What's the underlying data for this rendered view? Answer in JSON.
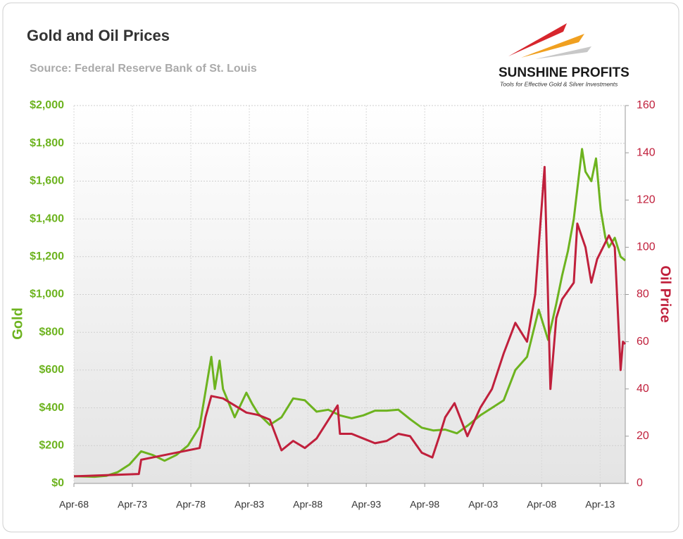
{
  "chart_data": {
    "type": "line",
    "title": "Gold and Oil Prices",
    "subtitle": "Source: Federal Reserve Bank of St. Louis",
    "logo": "SUNSHINE PROFITS",
    "logo_tagline": "Tools for Effective Gold & Silver Investments",
    "ylabel": "Gold",
    "y2label": "Oil Price",
    "xlim": [
      1968.25,
      2015.4
    ],
    "xticks": [
      {
        "value": 1968.25,
        "label": "Apr-68"
      },
      {
        "value": 1973.25,
        "label": "Apr-73"
      },
      {
        "value": 1978.25,
        "label": "Apr-78"
      },
      {
        "value": 1983.25,
        "label": "Apr-83"
      },
      {
        "value": 1988.25,
        "label": "Apr-88"
      },
      {
        "value": 1993.25,
        "label": "Apr-93"
      },
      {
        "value": 1998.25,
        "label": "Apr-98"
      },
      {
        "value": 2003.25,
        "label": "Apr-03"
      },
      {
        "value": 2008.25,
        "label": "Apr-08"
      },
      {
        "value": 2013.25,
        "label": "Apr-13"
      }
    ],
    "ylim": [
      0,
      2000
    ],
    "yticks": [
      {
        "value": 0,
        "label": "$0"
      },
      {
        "value": 200,
        "label": "$200"
      },
      {
        "value": 400,
        "label": "$400"
      },
      {
        "value": 600,
        "label": "$600"
      },
      {
        "value": 800,
        "label": "$800"
      },
      {
        "value": 1000,
        "label": "$1,000"
      },
      {
        "value": 1200,
        "label": "$1,200"
      },
      {
        "value": 1400,
        "label": "$1,400"
      },
      {
        "value": 1600,
        "label": "$1,600"
      },
      {
        "value": 1800,
        "label": "$1,800"
      },
      {
        "value": 2000,
        "label": "$2,000"
      }
    ],
    "y2lim": [
      0,
      160
    ],
    "y2ticks": [
      0,
      20,
      40,
      60,
      80,
      100,
      120,
      140,
      160
    ],
    "grid": true,
    "series": [
      {
        "name": "Gold",
        "color": "#6db31f",
        "x": [
          1968.25,
          1970,
          1971,
          1972,
          1973,
          1974,
          1975,
          1976,
          1977,
          1978,
          1979,
          1980.0,
          1980.3,
          1980.7,
          1981,
          1982,
          1983,
          1983.5,
          1984,
          1985,
          1986,
          1987,
          1988,
          1989,
          1990,
          1991,
          1992,
          1993,
          1994,
          1995,
          1996,
          1997,
          1998,
          1999,
          2000,
          2001,
          2002,
          2003,
          2004,
          2005,
          2006,
          2007,
          2008,
          2008.8,
          2009.5,
          2010,
          2010.5,
          2011,
          2011.7,
          2012,
          2012.5,
          2012.9,
          2013.3,
          2013.7,
          2014,
          2014.5,
          2015,
          2015.4
        ],
        "values": [
          38,
          35,
          40,
          60,
          100,
          170,
          150,
          120,
          150,
          200,
          300,
          670,
          500,
          650,
          500,
          350,
          480,
          420,
          370,
          310,
          350,
          450,
          440,
          380,
          390,
          360,
          345,
          360,
          385,
          385,
          390,
          340,
          295,
          280,
          285,
          265,
          310,
          360,
          400,
          440,
          600,
          670,
          920,
          760,
          950,
          1100,
          1230,
          1400,
          1770,
          1650,
          1600,
          1720,
          1450,
          1300,
          1250,
          1300,
          1200,
          1180
        ]
      },
      {
        "name": "Oil Price",
        "color": "#c0203c",
        "axis": "y2",
        "x": [
          1968.25,
          1973.8,
          1974,
          1976,
          1978,
          1979,
          1979.5,
          1980,
          1981,
          1982,
          1983,
          1984,
          1985,
          1986,
          1987,
          1988,
          1989,
          1990.8,
          1991,
          1992,
          1993,
          1994,
          1995,
          1996,
          1997,
          1998,
          1998.9,
          1999.5,
          2000,
          2000.8,
          2001.9,
          2003,
          2004,
          2005,
          2006,
          2007,
          2007.7,
          2008.5,
          2009,
          2009.5,
          2010,
          2011,
          2011.3,
          2012,
          2012.5,
          2013,
          2014,
          2014.5,
          2015,
          2015.2,
          2015.4
        ],
        "values": [
          3,
          4,
          10,
          12,
          14,
          15,
          28,
          37,
          36,
          33,
          30,
          29,
          27,
          14,
          18,
          15,
          19,
          33,
          21,
          21,
          19,
          17,
          18,
          21,
          20,
          13,
          11,
          20,
          28,
          34,
          20,
          32,
          40,
          55,
          68,
          60,
          80,
          134,
          40,
          70,
          78,
          85,
          110,
          100,
          85,
          95,
          105,
          100,
          48,
          60,
          59
        ]
      }
    ]
  }
}
